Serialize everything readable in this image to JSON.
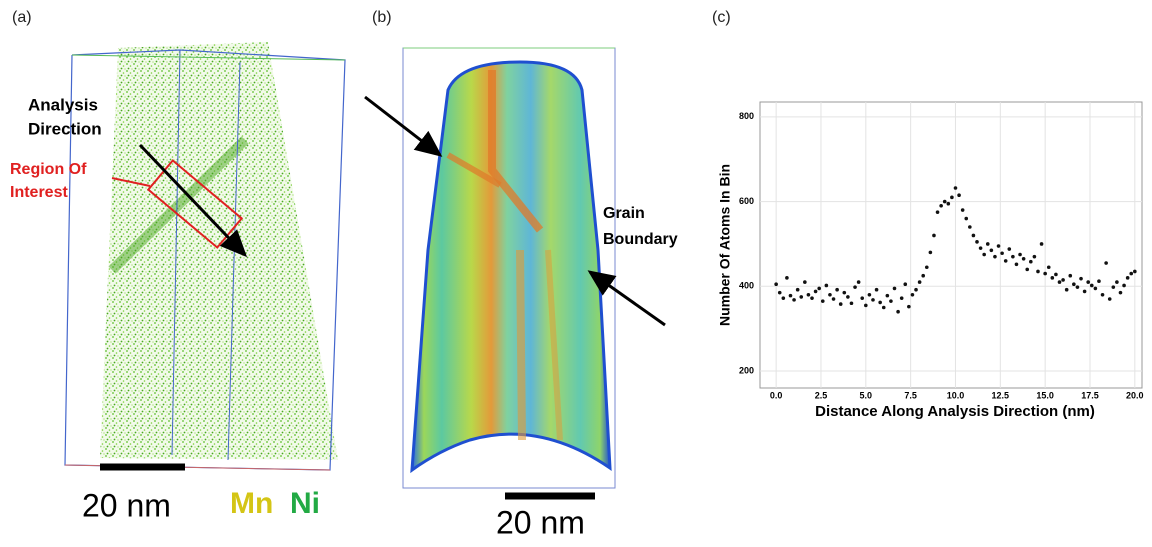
{
  "panels": {
    "a": {
      "label": "(a)",
      "arrow_text": [
        "Analysis",
        "Direction"
      ],
      "roi_text": [
        "Region Of",
        "Interest"
      ],
      "scale": "20 nm",
      "elements": [
        "Mn",
        "Ni"
      ]
    },
    "b": {
      "label": "(b)",
      "boundary_text": [
        "Grain",
        "Boundary"
      ],
      "scale": "20 nm"
    },
    "c": {
      "label": "(c)"
    }
  },
  "chart_data": {
    "type": "scatter",
    "x_label": "Distance Along Analysis Direction (nm)",
    "y_label": "Number Of Atoms In Bin",
    "color": "#111111",
    "grid": true,
    "xlim": [
      -0.9,
      20.4
    ],
    "ylim": [
      160,
      835
    ],
    "xticks": [
      {
        "value": 0,
        "label": "0.0"
      },
      {
        "value": 2.5,
        "label": "2.5"
      },
      {
        "value": 5,
        "label": "5.0"
      },
      {
        "value": 7.5,
        "label": "7.5"
      },
      {
        "value": 10,
        "label": "10.0"
      },
      {
        "value": 12.5,
        "label": "12.5"
      },
      {
        "value": 15,
        "label": "15.0"
      },
      {
        "value": 17.5,
        "label": "17.5"
      },
      {
        "value": 20,
        "label": "20.0"
      }
    ],
    "yticks": [
      200,
      400,
      600,
      800
    ],
    "x": [
      0,
      0.2,
      0.4,
      0.6,
      0.8,
      1,
      1.2,
      1.4,
      1.6,
      1.8,
      2,
      2.2,
      2.4,
      2.6,
      2.8,
      3,
      3.2,
      3.4,
      3.6,
      3.8,
      4,
      4.2,
      4.4,
      4.6,
      4.8,
      5,
      5.2,
      5.4,
      5.6,
      5.8,
      6,
      6.2,
      6.4,
      6.6,
      6.8,
      7,
      7.2,
      7.4,
      7.6,
      7.8,
      8,
      8.2,
      8.4,
      8.6,
      8.8,
      9,
      9.2,
      9.4,
      9.6,
      9.8,
      10,
      10.2,
      10.4,
      10.6,
      10.8,
      11,
      11.2,
      11.4,
      11.6,
      11.8,
      12,
      12.2,
      12.4,
      12.6,
      12.8,
      13,
      13.2,
      13.4,
      13.6,
      13.8,
      14,
      14.2,
      14.4,
      14.6,
      14.8,
      15,
      15.2,
      15.4,
      15.6,
      15.8,
      16,
      16.2,
      16.4,
      16.6,
      16.8,
      17,
      17.2,
      17.4,
      17.6,
      17.8,
      18,
      18.2,
      18.4,
      18.6,
      18.8,
      19,
      19.2,
      19.4,
      19.6,
      19.8,
      20
    ],
    "values": [
      405,
      385,
      372,
      420,
      378,
      368,
      392,
      375,
      410,
      380,
      372,
      388,
      395,
      365,
      402,
      380,
      370,
      392,
      358,
      385,
      375,
      360,
      398,
      410,
      372,
      355,
      380,
      368,
      392,
      362,
      350,
      378,
      365,
      395,
      340,
      372,
      405,
      352,
      380,
      392,
      410,
      425,
      445,
      480,
      520,
      575,
      590,
      600,
      595,
      610,
      632,
      615,
      580,
      560,
      540,
      520,
      505,
      490,
      475,
      500,
      485,
      470,
      495,
      478,
      460,
      488,
      470,
      452,
      475,
      465,
      440,
      458,
      470,
      435,
      500,
      430,
      445,
      420,
      428,
      410,
      415,
      392,
      425,
      405,
      398,
      418,
      388,
      410,
      402,
      395,
      412,
      380,
      455,
      370,
      398,
      410,
      385,
      402,
      420,
      430,
      435
    ]
  }
}
